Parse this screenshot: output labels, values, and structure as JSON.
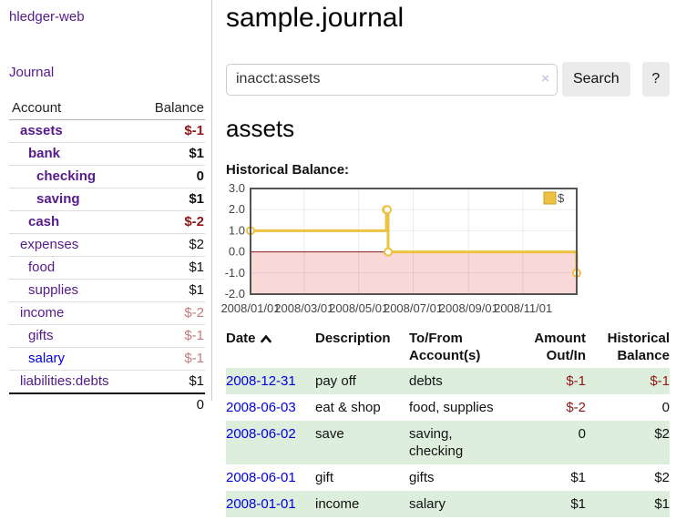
{
  "sidebar": {
    "brand": "hledger-web",
    "nav": {
      "journal": "Journal"
    },
    "table": {
      "header": {
        "account": "Account",
        "balance": "Balance"
      },
      "rows": [
        {
          "account": "assets",
          "balance": "$-1"
        },
        {
          "account": "bank",
          "balance": "$1"
        },
        {
          "account": "checking",
          "balance": "0"
        },
        {
          "account": "saving",
          "balance": "$1"
        },
        {
          "account": "cash",
          "balance": "$-2"
        },
        {
          "account": "expenses",
          "balance": "$2"
        },
        {
          "account": "food",
          "balance": "$1"
        },
        {
          "account": "supplies",
          "balance": "$1"
        },
        {
          "account": "income",
          "balance": "$-2"
        },
        {
          "account": "gifts",
          "balance": "$-1"
        },
        {
          "account": "salary",
          "balance": "$-1"
        },
        {
          "account": "liabilities:debts",
          "balance": "$1"
        }
      ],
      "total": "0"
    }
  },
  "main": {
    "title": "sample.journal",
    "search": {
      "value": "inacct:assets",
      "clear_icon": "×",
      "search_button": "Search",
      "help_button": "?"
    },
    "account_heading": "assets",
    "chart_heading": "Historical Balance:"
  },
  "chart_data": {
    "type": "line",
    "step": true,
    "title": "Historical Balance",
    "xlim": [
      "2008-01-01",
      "2008-12-31"
    ],
    "ylim": [
      -2,
      3
    ],
    "grid": true,
    "legend_position": "top-right",
    "series": [
      {
        "name": "$",
        "color": "#edc240",
        "points": [
          {
            "date": "2008-01-01",
            "value": 1
          },
          {
            "date": "2008-06-01",
            "value": 2
          },
          {
            "date": "2008-06-02",
            "value": 2
          },
          {
            "date": "2008-06-03",
            "value": 0
          },
          {
            "date": "2008-12-31",
            "value": -1
          }
        ]
      }
    ],
    "y_ticks": [
      {
        "v": 3,
        "label": "3.0"
      },
      {
        "v": 2,
        "label": "2.0"
      },
      {
        "v": 1,
        "label": "1.0"
      },
      {
        "v": 0,
        "label": "0.0"
      },
      {
        "v": -1,
        "label": "-1.0"
      },
      {
        "v": -2,
        "label": "-2.0"
      }
    ],
    "x_ticks": [
      {
        "date": "2008-01-01",
        "label": "2008/01/01"
      },
      {
        "date": "2008-03-01",
        "label": "2008/03/01"
      },
      {
        "date": "2008-05-01",
        "label": "2008/05/01"
      },
      {
        "date": "2008-07-01",
        "label": "2008/07/01"
      },
      {
        "date": "2008-09-01",
        "label": "2008/09/01"
      },
      {
        "date": "2008-11-01",
        "label": "2008/11/01"
      }
    ],
    "negative_region_color": "#f9d8d8",
    "zero_line_color": "#8b1a1a",
    "grid_color": "rgba(0,0,0,0.08)",
    "border_color": "#545454",
    "legend_swatch_border": "#cb9f22",
    "tick_label_color": "#444444"
  },
  "register": {
    "sort": "ascending",
    "headers": {
      "date": "Date",
      "description": "Description",
      "accounts": "To/From Account(s)",
      "amount": "Amount Out/In",
      "balance": "Historical Balance"
    },
    "rows": [
      {
        "date": "2008-12-31",
        "description": "pay off",
        "accounts": "debts",
        "amount": "$-1",
        "balance": "$-1"
      },
      {
        "date": "2008-06-03",
        "description": "eat & shop",
        "accounts": "food, supplies",
        "amount": "$-2",
        "balance": "0"
      },
      {
        "date": "2008-06-02",
        "description": "save",
        "accounts": "saving, checking",
        "amount": "0",
        "balance": "$2"
      },
      {
        "date": "2008-06-01",
        "description": "gift",
        "accounts": "gifts",
        "amount": "$1",
        "balance": "$2"
      },
      {
        "date": "2008-01-01",
        "description": "income",
        "accounts": "salary",
        "amount": "$1",
        "balance": "$1"
      }
    ]
  },
  "colors": {
    "link_purple": "#551a8b",
    "link_blue": "#0000e0",
    "negative_strong": "#8f1717",
    "negative_soft": "#c27c7c",
    "row_green": "#ddeedd",
    "button_grey": "#ebebeb"
  }
}
